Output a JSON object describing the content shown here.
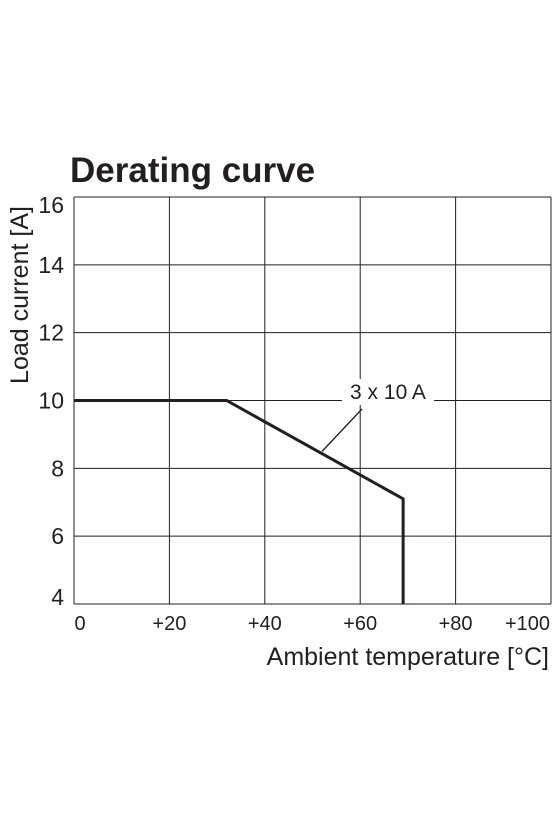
{
  "chart_data": {
    "type": "line",
    "title": "Derating curve",
    "xlabel": "Ambient temperature [°C]",
    "ylabel": "Load current [A]",
    "xlim": [
      0,
      100
    ],
    "ylim": [
      4,
      16
    ],
    "x_ticks": [
      0,
      20,
      40,
      60,
      80,
      100
    ],
    "x_tick_labels": [
      "0",
      "+20",
      "+40",
      "+60",
      "+80",
      "+100"
    ],
    "y_ticks": [
      4,
      6,
      8,
      10,
      12,
      14,
      16
    ],
    "y_tick_labels": [
      "4",
      "6",
      "8",
      "10",
      "12",
      "14",
      "16"
    ],
    "grid": true,
    "series": [
      {
        "name": "3 x 10 A",
        "points": [
          {
            "x": 0,
            "y": 10
          },
          {
            "x": 32,
            "y": 10
          },
          {
            "x": 69,
            "y": 7.1
          },
          {
            "x": 69,
            "y": 4
          }
        ]
      }
    ],
    "annotations": [
      {
        "text": "3 x 10 A",
        "points_to": {
          "x": 52,
          "y": 8.5
        }
      }
    ]
  }
}
